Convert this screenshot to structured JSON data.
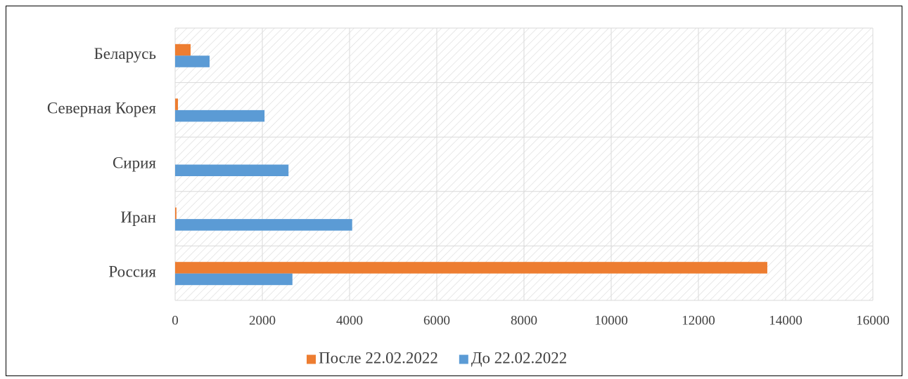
{
  "chart_data": {
    "type": "barh",
    "categories": [
      "Беларусь",
      "Северная Корея",
      "Сирия",
      "Иран",
      "Россия"
    ],
    "series": [
      {
        "name": "После 22.02.2022",
        "color": "#ed7d31",
        "values": [
          355,
          65,
          0,
          30,
          13580
        ]
      },
      {
        "name": "До 22.02.2022",
        "color": "#5b9bd5",
        "values": [
          790,
          2050,
          2600,
          4060,
          2690
        ]
      }
    ],
    "xlim": [
      0,
      16000
    ],
    "xticks": [
      0,
      2000,
      4000,
      6000,
      8000,
      10000,
      12000,
      14000,
      16000
    ],
    "grid": true,
    "legend": "bottom"
  }
}
